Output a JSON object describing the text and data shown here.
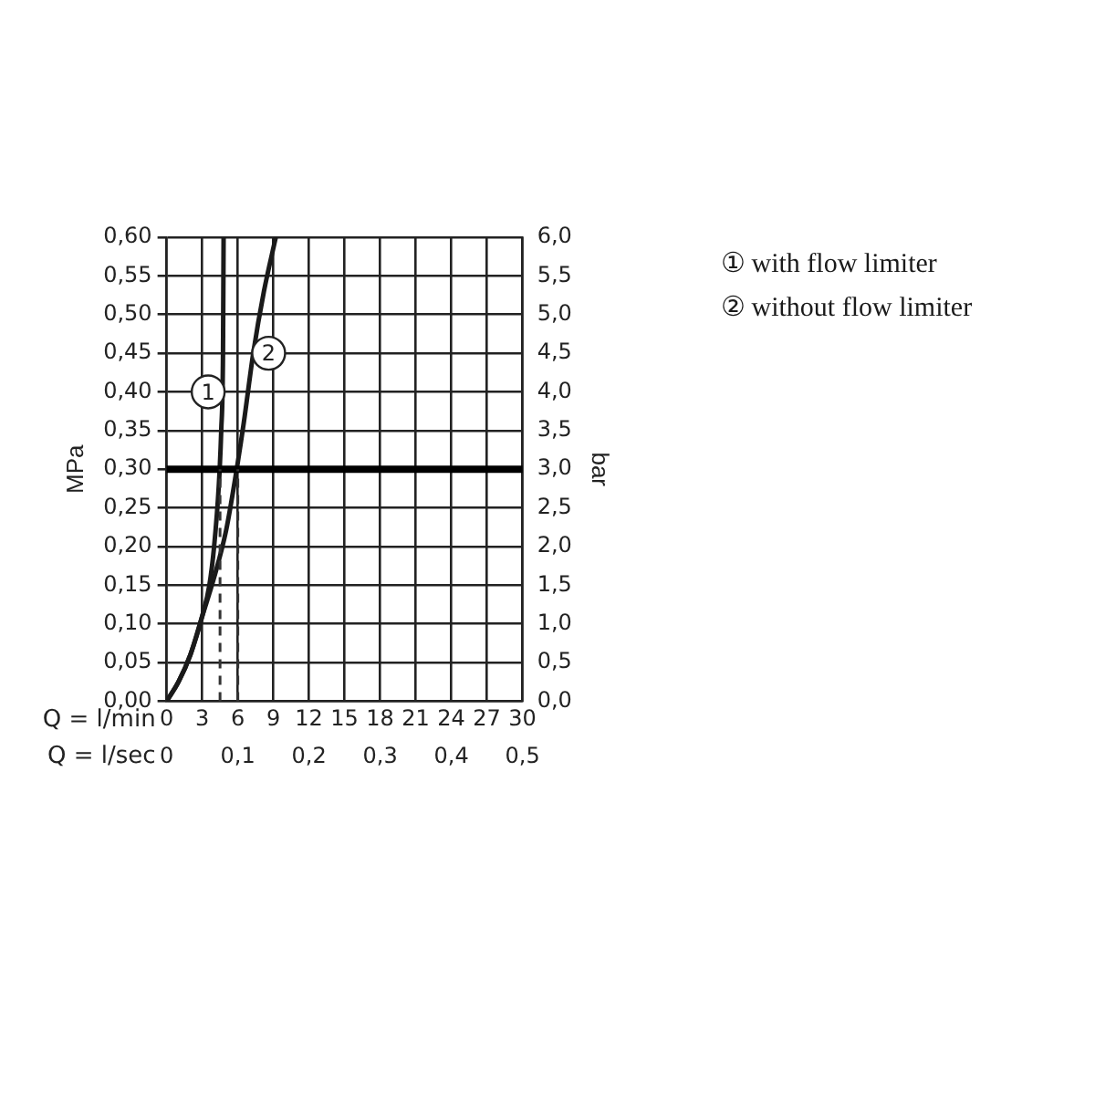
{
  "chart_data": {
    "type": "line",
    "xlabel": "Q = l/min",
    "x2label": "Q = l/sec",
    "ylabel": "MPa",
    "y2label": "bar",
    "series": [
      {
        "name": "① with flow limiter",
        "color": "#1a1a1a",
        "x": [
          0,
          1,
          2,
          3,
          3.6,
          4,
          4.4,
          4.6,
          4.75,
          4.8
        ],
        "values": [
          0,
          0.025,
          0.06,
          0.11,
          0.15,
          0.2,
          0.28,
          0.35,
          0.45,
          0.6
        ]
      },
      {
        "name": "② without flow limiter",
        "color": "#1a1a1a",
        "x": [
          0,
          1,
          2,
          3,
          4,
          5,
          5.8,
          6.5,
          7.3,
          8.2,
          9.2
        ],
        "values": [
          0,
          0.025,
          0.06,
          0.11,
          0.16,
          0.22,
          0.29,
          0.36,
          0.45,
          0.53,
          0.6
        ]
      }
    ],
    "xlim": [
      0,
      30
    ],
    "xticks": [
      0,
      3,
      6,
      9,
      12,
      15,
      18,
      21,
      24,
      27,
      30
    ],
    "x2lim": [
      0,
      0.5
    ],
    "x2ticks": [
      {
        "value": 0,
        "label": "0"
      },
      {
        "value": 0.1,
        "label": "0,1"
      },
      {
        "value": 0.2,
        "label": "0,2"
      },
      {
        "value": 0.3,
        "label": "0,3"
      },
      {
        "value": 0.4,
        "label": "0,4"
      },
      {
        "value": 0.5,
        "label": "0,5"
      }
    ],
    "ylim": [
      0,
      0.6
    ],
    "yticks": [
      {
        "value": 0,
        "label": "0,00"
      },
      {
        "value": 0.05,
        "label": "0,05"
      },
      {
        "value": 0.1,
        "label": "0,10"
      },
      {
        "value": 0.15,
        "label": "0,15"
      },
      {
        "value": 0.2,
        "label": "0,20"
      },
      {
        "value": 0.25,
        "label": "0,25"
      },
      {
        "value": 0.3,
        "label": "0,30"
      },
      {
        "value": 0.35,
        "label": "0,35"
      },
      {
        "value": 0.4,
        "label": "0,40"
      },
      {
        "value": 0.45,
        "label": "0,45"
      },
      {
        "value": 0.5,
        "label": "0,50"
      },
      {
        "value": 0.55,
        "label": "0,55"
      },
      {
        "value": 0.6,
        "label": "0,60"
      }
    ],
    "y2lim": [
      0,
      6
    ],
    "y2ticks": [
      {
        "value": 0,
        "label": "0,0"
      },
      {
        "value": 0.5,
        "label": "0,5"
      },
      {
        "value": 1,
        "label": "1,0"
      },
      {
        "value": 1.5,
        "label": "1,5"
      },
      {
        "value": 2,
        "label": "2,0"
      },
      {
        "value": 2.5,
        "label": "2,5"
      },
      {
        "value": 3,
        "label": "3,0"
      },
      {
        "value": 3.5,
        "label": "3,5"
      },
      {
        "value": 4,
        "label": "4,0"
      },
      {
        "value": 4.5,
        "label": "4,5"
      },
      {
        "value": 5,
        "label": "5,0"
      },
      {
        "value": 5.5,
        "label": "5,5"
      },
      {
        "value": 6,
        "label": "6,0"
      }
    ],
    "ref_lines": [
      {
        "axis": "y",
        "value": 0.3,
        "color": "#000000",
        "line_style": "solid"
      },
      {
        "axis": "x",
        "value": 4.5,
        "color": "#333333",
        "line_style": "dashed"
      },
      {
        "axis": "x",
        "value": 6,
        "color": "#333333",
        "line_style": "dashed"
      }
    ],
    "annotations": [
      {
        "text": "1",
        "x": 3.5,
        "y": 0.4
      },
      {
        "text": "2",
        "x": 8.6,
        "y": 0.45
      }
    ],
    "grid": true,
    "legend": "right",
    "marker": "none",
    "line_style": "solid"
  }
}
